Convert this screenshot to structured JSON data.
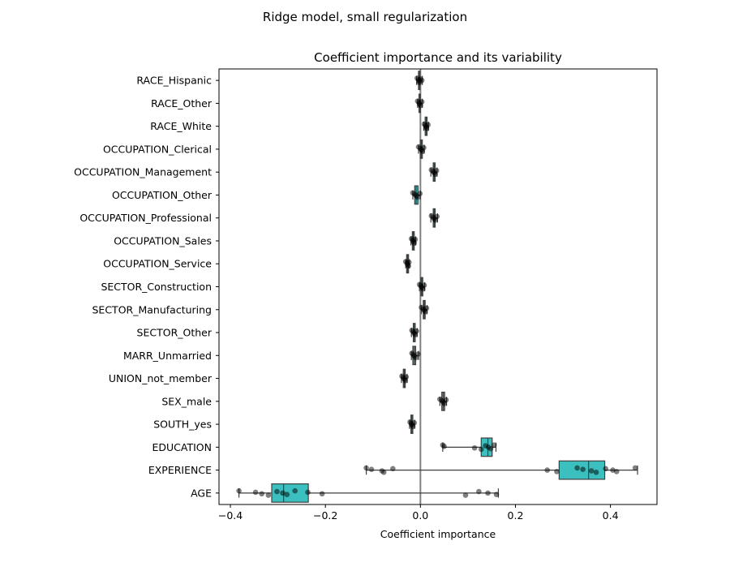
{
  "chart_data": {
    "type": "box",
    "suptitle": "Ridge model, small regularization",
    "title": "Coefficient importance and its variability",
    "xlabel": "Coefficient importance",
    "ylabel": "",
    "xlim": [
      -0.424,
      0.498
    ],
    "xticks": [
      -0.4,
      -0.2,
      0.0,
      0.2,
      0.4
    ],
    "xtick_labels": [
      "−0.4",
      "−0.2",
      "0.0",
      "0.2",
      "0.4"
    ],
    "vline": 0,
    "grid": false,
    "box_color": "#3bbfbf",
    "point_color": "#000000",
    "categories": [
      "RACE_Hispanic",
      "RACE_Other",
      "RACE_White",
      "OCCUPATION_Clerical",
      "OCCUPATION_Management",
      "OCCUPATION_Other",
      "OCCUPATION_Professional",
      "OCCUPATION_Sales",
      "OCCUPATION_Service",
      "SECTOR_Construction",
      "SECTOR_Manufacturing",
      "SECTOR_Other",
      "MARR_Unmarried",
      "UNION_not_member",
      "SEX_male",
      "SOUTH_yes",
      "EDUCATION",
      "EXPERIENCE",
      "AGE"
    ],
    "boxes": [
      {
        "whislo": -0.008,
        "q1": -0.004,
        "med": -0.003,
        "q3": -0.001,
        "whishi": 0.004,
        "points": [
          -0.007,
          -0.004,
          -0.003,
          -0.002,
          0.0,
          0.003
        ]
      },
      {
        "whislo": -0.006,
        "q1": -0.003,
        "med": -0.002,
        "q3": 0.0,
        "whishi": 0.004,
        "points": [
          -0.006,
          -0.003,
          -0.002,
          0.0,
          0.003
        ]
      },
      {
        "whislo": 0.007,
        "q1": 0.01,
        "med": 0.012,
        "q3": 0.014,
        "whishi": 0.017,
        "points": [
          0.008,
          0.011,
          0.012,
          0.013,
          0.016
        ]
      },
      {
        "whislo": -0.004,
        "q1": 0.0,
        "med": 0.002,
        "q3": 0.004,
        "whishi": 0.008,
        "points": [
          -0.004,
          0.0,
          0.002,
          0.004,
          0.007
        ]
      },
      {
        "whislo": 0.022,
        "q1": 0.027,
        "med": 0.029,
        "q3": 0.031,
        "whishi": 0.035,
        "points": [
          0.023,
          0.027,
          0.029,
          0.031,
          0.034
        ]
      },
      {
        "whislo": -0.016,
        "q1": -0.012,
        "med": -0.009,
        "q3": -0.005,
        "whishi": 0.0,
        "points": [
          -0.016,
          -0.012,
          -0.009,
          -0.006,
          -0.001
        ]
      },
      {
        "whislo": 0.022,
        "q1": 0.027,
        "med": 0.029,
        "q3": 0.031,
        "whishi": 0.036,
        "points": [
          0.023,
          0.027,
          0.029,
          0.031,
          0.035
        ]
      },
      {
        "whislo": -0.02,
        "q1": -0.017,
        "med": -0.015,
        "q3": -0.013,
        "whishi": -0.01,
        "points": [
          -0.019,
          -0.016,
          -0.015,
          -0.013,
          -0.011
        ]
      },
      {
        "whislo": -0.031,
        "q1": -0.029,
        "med": -0.027,
        "q3": -0.025,
        "whishi": -0.023,
        "points": [
          -0.031,
          -0.028,
          -0.027,
          -0.025,
          -0.024
        ]
      },
      {
        "whislo": -0.002,
        "q1": 0.001,
        "med": 0.003,
        "q3": 0.005,
        "whishi": 0.009,
        "points": [
          -0.002,
          0.001,
          0.003,
          0.005,
          0.008
        ]
      },
      {
        "whislo": 0.002,
        "q1": 0.006,
        "med": 0.008,
        "q3": 0.01,
        "whishi": 0.014,
        "points": [
          0.002,
          0.006,
          0.008,
          0.01,
          0.013
        ]
      },
      {
        "whislo": -0.019,
        "q1": -0.015,
        "med": -0.013,
        "q3": -0.011,
        "whishi": -0.007,
        "points": [
          -0.018,
          -0.015,
          -0.013,
          -0.011,
          -0.008
        ]
      },
      {
        "whislo": -0.019,
        "q1": -0.016,
        "med": -0.013,
        "q3": -0.01,
        "whishi": -0.004,
        "points": [
          -0.018,
          -0.015,
          -0.013,
          -0.01,
          -0.005
        ]
      },
      {
        "whislo": -0.04,
        "q1": -0.036,
        "med": -0.034,
        "q3": -0.032,
        "whishi": -0.028,
        "points": [
          -0.039,
          -0.036,
          -0.034,
          -0.032,
          -0.03
        ]
      },
      {
        "whislo": 0.041,
        "q1": 0.045,
        "med": 0.048,
        "q3": 0.051,
        "whishi": 0.055,
        "points": [
          0.041,
          0.045,
          0.048,
          0.05,
          0.054
        ]
      },
      {
        "whislo": -0.023,
        "q1": -0.02,
        "med": -0.018,
        "q3": -0.016,
        "whishi": -0.012,
        "points": [
          -0.022,
          -0.019,
          -0.018,
          -0.016,
          -0.013
        ]
      },
      {
        "whislo": 0.047,
        "q1": 0.128,
        "med": 0.142,
        "q3": 0.151,
        "whishi": 0.159,
        "points": [
          0.047,
          0.05,
          0.114,
          0.128,
          0.137,
          0.143,
          0.148,
          0.155
        ]
      },
      {
        "whislo": -0.114,
        "q1": 0.292,
        "med": 0.354,
        "q3": 0.388,
        "whishi": 0.457,
        "points": [
          -0.114,
          -0.103,
          -0.081,
          -0.077,
          -0.058,
          0.267,
          0.287,
          0.33,
          0.342,
          0.36,
          0.37,
          0.39,
          0.405,
          0.413,
          0.452
        ]
      },
      {
        "whislo": -0.382,
        "q1": -0.313,
        "med": -0.288,
        "q3": -0.236,
        "whishi": 0.164,
        "points": [
          -0.382,
          -0.347,
          -0.334,
          -0.32,
          -0.302,
          -0.29,
          -0.281,
          -0.264,
          -0.237,
          -0.207,
          0.095,
          0.123,
          0.142,
          0.16
        ]
      }
    ]
  }
}
